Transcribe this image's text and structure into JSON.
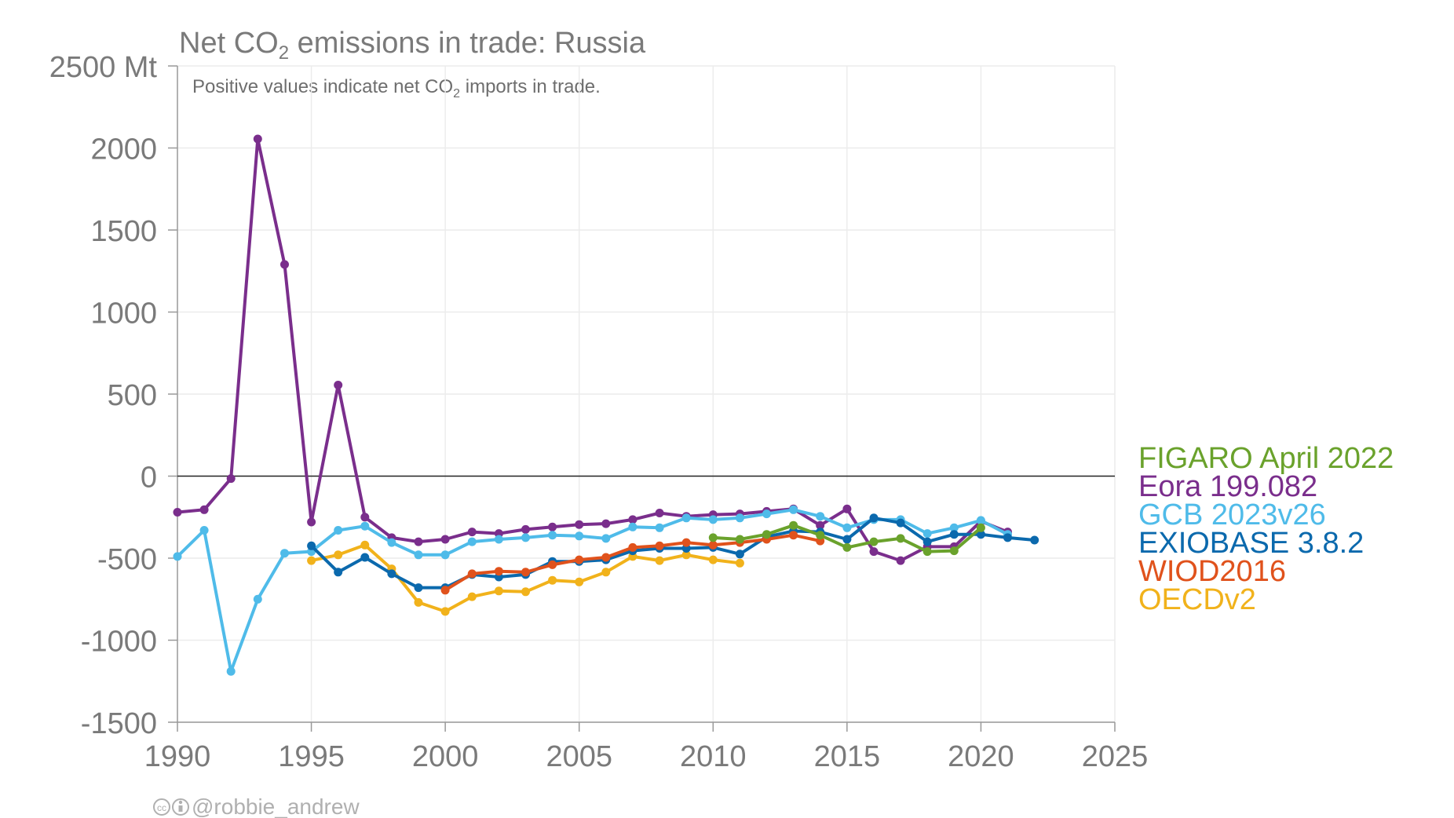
{
  "chart_data": {
    "type": "line",
    "title_pre": "Net CO",
    "title_sub": "2",
    "title_post": " emissions in trade: Russia",
    "subtitle_pre": "Positive values indicate net CO",
    "subtitle_sub": "2",
    "subtitle_post": " imports in trade.",
    "credit": "@robbie_andrew",
    "xlim": [
      1990,
      2025
    ],
    "ylim": [
      -1500,
      2500
    ],
    "x_ticks": [
      1990,
      1995,
      2000,
      2005,
      2010,
      2015,
      2020,
      2025
    ],
    "y_ticks": [
      -1500,
      -1000,
      -500,
      0,
      500,
      1000,
      1500,
      2000,
      2500
    ],
    "y_tick_labels": [
      "-1500",
      "-1000",
      "-500",
      "0",
      "500",
      "1000",
      "1500",
      "2000",
      "2500 Mt"
    ],
    "grid": true,
    "zero_line": true,
    "legend_position": "right",
    "series": [
      {
        "name": "FIGARO April 2022",
        "color": "#6aa22c",
        "points": [
          [
            2010,
            -375
          ],
          [
            2011,
            -385
          ],
          [
            2012,
            -355
          ],
          [
            2013,
            -300
          ],
          [
            2014,
            -360
          ],
          [
            2015,
            -435
          ],
          [
            2016,
            -400
          ],
          [
            2017,
            -380
          ],
          [
            2018,
            -460
          ],
          [
            2019,
            -455
          ],
          [
            2020,
            -315
          ]
        ]
      },
      {
        "name": "Eora 199.082",
        "color": "#7a2e8c",
        "points": [
          [
            1990,
            -220
          ],
          [
            1991,
            -205
          ],
          [
            1992,
            -15
          ],
          [
            1993,
            2055
          ],
          [
            1994,
            1290
          ],
          [
            1995,
            -280
          ],
          [
            1996,
            555
          ],
          [
            1997,
            -250
          ],
          [
            1998,
            -375
          ],
          [
            1999,
            -400
          ],
          [
            2000,
            -385
          ],
          [
            2001,
            -340
          ],
          [
            2002,
            -350
          ],
          [
            2003,
            -325
          ],
          [
            2004,
            -310
          ],
          [
            2005,
            -295
          ],
          [
            2006,
            -290
          ],
          [
            2007,
            -265
          ],
          [
            2008,
            -225
          ],
          [
            2009,
            -245
          ],
          [
            2010,
            -235
          ],
          [
            2011,
            -230
          ],
          [
            2012,
            -215
          ],
          [
            2013,
            -200
          ],
          [
            2014,
            -300
          ],
          [
            2015,
            -200
          ],
          [
            2016,
            -460
          ],
          [
            2017,
            -515
          ],
          [
            2018,
            -430
          ],
          [
            2019,
            -430
          ],
          [
            2020,
            -275
          ],
          [
            2021,
            -340
          ]
        ]
      },
      {
        "name": "GCB 2023v26",
        "color": "#4fbbe9",
        "points": [
          [
            1990,
            -490
          ],
          [
            1991,
            -330
          ],
          [
            1992,
            -1190
          ],
          [
            1993,
            -750
          ],
          [
            1994,
            -470
          ],
          [
            1995,
            -460
          ],
          [
            1996,
            -330
          ],
          [
            1997,
            -305
          ],
          [
            1998,
            -405
          ],
          [
            1999,
            -480
          ],
          [
            2000,
            -480
          ],
          [
            2001,
            -400
          ],
          [
            2002,
            -385
          ],
          [
            2003,
            -375
          ],
          [
            2004,
            -360
          ],
          [
            2005,
            -365
          ],
          [
            2006,
            -380
          ],
          [
            2007,
            -310
          ],
          [
            2008,
            -315
          ],
          [
            2009,
            -255
          ],
          [
            2010,
            -265
          ],
          [
            2011,
            -255
          ],
          [
            2012,
            -230
          ],
          [
            2013,
            -205
          ],
          [
            2014,
            -245
          ],
          [
            2015,
            -315
          ],
          [
            2016,
            -265
          ],
          [
            2017,
            -265
          ],
          [
            2018,
            -350
          ],
          [
            2019,
            -315
          ],
          [
            2020,
            -270
          ],
          [
            2021,
            -355
          ]
        ]
      },
      {
        "name": "EXIOBASE 3.8.2",
        "color": "#0b69ad",
        "points": [
          [
            1995,
            -425
          ],
          [
            1996,
            -585
          ],
          [
            1997,
            -495
          ],
          [
            1998,
            -595
          ],
          [
            1999,
            -680
          ],
          [
            2000,
            -680
          ],
          [
            2001,
            -600
          ],
          [
            2002,
            -615
          ],
          [
            2003,
            -600
          ],
          [
            2004,
            -520
          ],
          [
            2005,
            -520
          ],
          [
            2006,
            -510
          ],
          [
            2007,
            -455
          ],
          [
            2008,
            -440
          ],
          [
            2009,
            -440
          ],
          [
            2010,
            -435
          ],
          [
            2011,
            -475
          ],
          [
            2012,
            -370
          ],
          [
            2013,
            -335
          ],
          [
            2014,
            -340
          ],
          [
            2015,
            -385
          ],
          [
            2016,
            -255
          ],
          [
            2017,
            -285
          ],
          [
            2018,
            -400
          ],
          [
            2019,
            -355
          ],
          [
            2020,
            -355
          ],
          [
            2021,
            -375
          ],
          [
            2022,
            -390
          ]
        ]
      },
      {
        "name": "WIOD2016",
        "color": "#e0521c",
        "points": [
          [
            2000,
            -695
          ],
          [
            2001,
            -595
          ],
          [
            2002,
            -580
          ],
          [
            2003,
            -585
          ],
          [
            2004,
            -540
          ],
          [
            2005,
            -510
          ],
          [
            2006,
            -495
          ],
          [
            2007,
            -435
          ],
          [
            2008,
            -425
          ],
          [
            2009,
            -405
          ],
          [
            2010,
            -420
          ],
          [
            2011,
            -405
          ],
          [
            2012,
            -385
          ],
          [
            2013,
            -360
          ],
          [
            2014,
            -395
          ]
        ]
      },
      {
        "name": "OECDv2",
        "color": "#f1b21b",
        "points": [
          [
            1995,
            -515
          ],
          [
            1996,
            -480
          ],
          [
            1997,
            -420
          ],
          [
            1998,
            -565
          ],
          [
            1999,
            -770
          ],
          [
            2000,
            -825
          ],
          [
            2001,
            -735
          ],
          [
            2002,
            -700
          ],
          [
            2003,
            -705
          ],
          [
            2004,
            -635
          ],
          [
            2005,
            -645
          ],
          [
            2006,
            -585
          ],
          [
            2007,
            -490
          ],
          [
            2008,
            -515
          ],
          [
            2009,
            -480
          ],
          [
            2010,
            -510
          ],
          [
            2011,
            -530
          ]
        ]
      }
    ]
  }
}
